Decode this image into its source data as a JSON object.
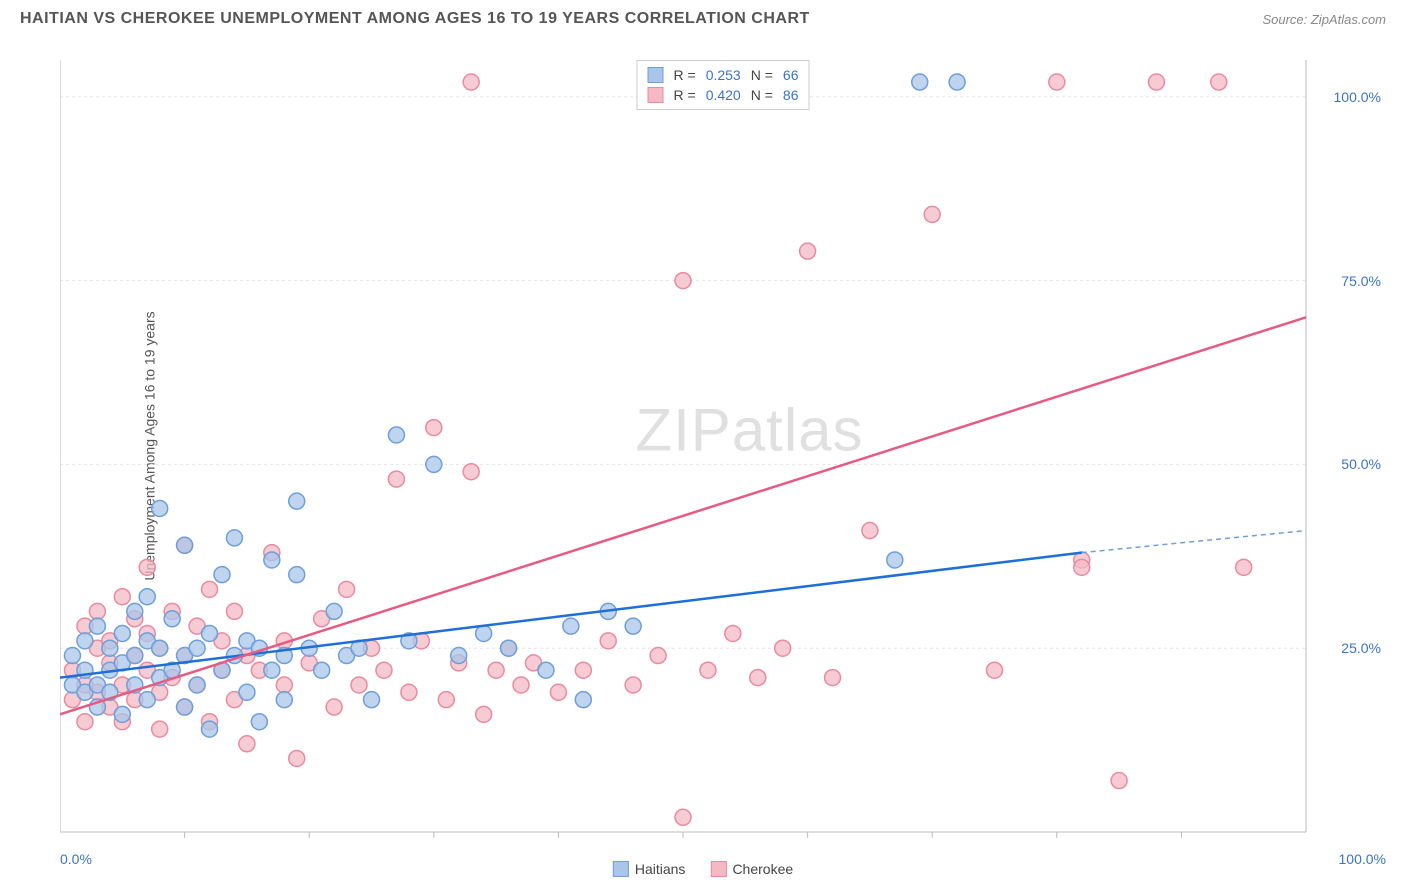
{
  "header": {
    "title": "HAITIAN VS CHEROKEE UNEMPLOYMENT AMONG AGES 16 TO 19 YEARS CORRELATION CHART",
    "source": "Source: ZipAtlas.com"
  },
  "chart": {
    "type": "scatter",
    "ylabel": "Unemployment Among Ages 16 to 19 years",
    "xlim": [
      0,
      100
    ],
    "ylim": [
      0,
      105
    ],
    "yticks": [
      25.0,
      50.0,
      75.0,
      100.0
    ],
    "ytick_labels": [
      "25.0%",
      "50.0%",
      "75.0%",
      "100.0%"
    ],
    "xtick_minor": [
      10,
      20,
      30,
      40,
      50,
      60,
      70,
      80,
      90
    ],
    "xtick_left": "0.0%",
    "xtick_right": "100.0%",
    "background_color": "#ffffff",
    "grid_color": "#e5e5e5",
    "axis_color": "#bbbbbb",
    "series": [
      {
        "name": "Haitians",
        "color_fill": "#a9c5ea",
        "color_stroke": "#6f9fd8",
        "line_color": "#1e6fd8",
        "line_dash_color": "#6f9fd8",
        "r_label": "R =",
        "r_value": "0.253",
        "n_label": "N =",
        "n_value": "66",
        "trend": {
          "x1": 0,
          "y1": 21,
          "x2": 82,
          "y2": 38,
          "dash_to_x": 100,
          "dash_to_y": 41
        },
        "points": [
          [
            1,
            20
          ],
          [
            1,
            24
          ],
          [
            2,
            26
          ],
          [
            2,
            19
          ],
          [
            2,
            22
          ],
          [
            3,
            28
          ],
          [
            3,
            20
          ],
          [
            3,
            17
          ],
          [
            4,
            25
          ],
          [
            4,
            22
          ],
          [
            4,
            19
          ],
          [
            5,
            27
          ],
          [
            5,
            23
          ],
          [
            5,
            16
          ],
          [
            6,
            30
          ],
          [
            6,
            24
          ],
          [
            6,
            20
          ],
          [
            7,
            32
          ],
          [
            7,
            26
          ],
          [
            7,
            18
          ],
          [
            8,
            44
          ],
          [
            8,
            25
          ],
          [
            8,
            21
          ],
          [
            9,
            29
          ],
          [
            9,
            22
          ],
          [
            10,
            39
          ],
          [
            10,
            24
          ],
          [
            10,
            17
          ],
          [
            11,
            25
          ],
          [
            11,
            20
          ],
          [
            12,
            27
          ],
          [
            12,
            14
          ],
          [
            13,
            35
          ],
          [
            13,
            22
          ],
          [
            14,
            40
          ],
          [
            14,
            24
          ],
          [
            15,
            26
          ],
          [
            15,
            19
          ],
          [
            16,
            25
          ],
          [
            16,
            15
          ],
          [
            17,
            37
          ],
          [
            17,
            22
          ],
          [
            18,
            24
          ],
          [
            18,
            18
          ],
          [
            19,
            45
          ],
          [
            19,
            35
          ],
          [
            20,
            25
          ],
          [
            21,
            22
          ],
          [
            22,
            30
          ],
          [
            23,
            24
          ],
          [
            24,
            25
          ],
          [
            25,
            18
          ],
          [
            27,
            54
          ],
          [
            28,
            26
          ],
          [
            30,
            50
          ],
          [
            32,
            24
          ],
          [
            34,
            27
          ],
          [
            36,
            25
          ],
          [
            39,
            22
          ],
          [
            41,
            28
          ],
          [
            42,
            18
          ],
          [
            44,
            30
          ],
          [
            46,
            28
          ],
          [
            67,
            37
          ],
          [
            69,
            102
          ],
          [
            72,
            102
          ]
        ]
      },
      {
        "name": "Cherokee",
        "color_fill": "#f4b9c4",
        "color_stroke": "#e88ba0",
        "line_color": "#e75b82",
        "r_label": "R =",
        "r_value": "0.420",
        "n_label": "N =",
        "n_value": "86",
        "trend": {
          "x1": 0,
          "y1": 16,
          "x2": 100,
          "y2": 70
        },
        "points": [
          [
            1,
            18
          ],
          [
            1,
            22
          ],
          [
            2,
            28
          ],
          [
            2,
            15
          ],
          [
            2,
            20
          ],
          [
            3,
            25
          ],
          [
            3,
            19
          ],
          [
            3,
            30
          ],
          [
            4,
            23
          ],
          [
            4,
            17
          ],
          [
            4,
            26
          ],
          [
            5,
            32
          ],
          [
            5,
            20
          ],
          [
            5,
            15
          ],
          [
            6,
            24
          ],
          [
            6,
            29
          ],
          [
            6,
            18
          ],
          [
            7,
            36
          ],
          [
            7,
            22
          ],
          [
            7,
            27
          ],
          [
            8,
            19
          ],
          [
            8,
            25
          ],
          [
            8,
            14
          ],
          [
            9,
            30
          ],
          [
            9,
            21
          ],
          [
            10,
            39
          ],
          [
            10,
            17
          ],
          [
            10,
            24
          ],
          [
            11,
            28
          ],
          [
            11,
            20
          ],
          [
            12,
            15
          ],
          [
            12,
            33
          ],
          [
            13,
            22
          ],
          [
            13,
            26
          ],
          [
            14,
            18
          ],
          [
            14,
            30
          ],
          [
            15,
            12
          ],
          [
            15,
            24
          ],
          [
            16,
            22
          ],
          [
            17,
            38
          ],
          [
            18,
            20
          ],
          [
            18,
            26
          ],
          [
            19,
            10
          ],
          [
            20,
            23
          ],
          [
            21,
            29
          ],
          [
            22,
            17
          ],
          [
            23,
            33
          ],
          [
            24,
            20
          ],
          [
            25,
            25
          ],
          [
            26,
            22
          ],
          [
            27,
            48
          ],
          [
            28,
            19
          ],
          [
            29,
            26
          ],
          [
            30,
            55
          ],
          [
            31,
            18
          ],
          [
            32,
            23
          ],
          [
            33,
            49
          ],
          [
            34,
            16
          ],
          [
            35,
            22
          ],
          [
            36,
            25
          ],
          [
            37,
            20
          ],
          [
            38,
            23
          ],
          [
            40,
            19
          ],
          [
            42,
            22
          ],
          [
            44,
            26
          ],
          [
            46,
            20
          ],
          [
            48,
            24
          ],
          [
            50,
            2
          ],
          [
            50,
            75
          ],
          [
            52,
            22
          ],
          [
            54,
            27
          ],
          [
            56,
            21
          ],
          [
            58,
            25
          ],
          [
            60,
            79
          ],
          [
            62,
            21
          ],
          [
            65,
            41
          ],
          [
            70,
            84
          ],
          [
            75,
            22
          ],
          [
            80,
            102
          ],
          [
            82,
            37
          ],
          [
            85,
            7
          ],
          [
            88,
            102
          ],
          [
            93,
            102
          ],
          [
            95,
            36
          ],
          [
            82,
            36
          ],
          [
            33,
            102
          ]
        ]
      }
    ],
    "legend_bottom": [
      {
        "label": "Haitians",
        "fill": "#a9c5ea",
        "stroke": "#6f9fd8"
      },
      {
        "label": "Cherokee",
        "fill": "#f4b9c4",
        "stroke": "#e88ba0"
      }
    ],
    "marker_radius": 8,
    "marker_opacity": 0.75,
    "watermark": "ZIPatlas"
  }
}
